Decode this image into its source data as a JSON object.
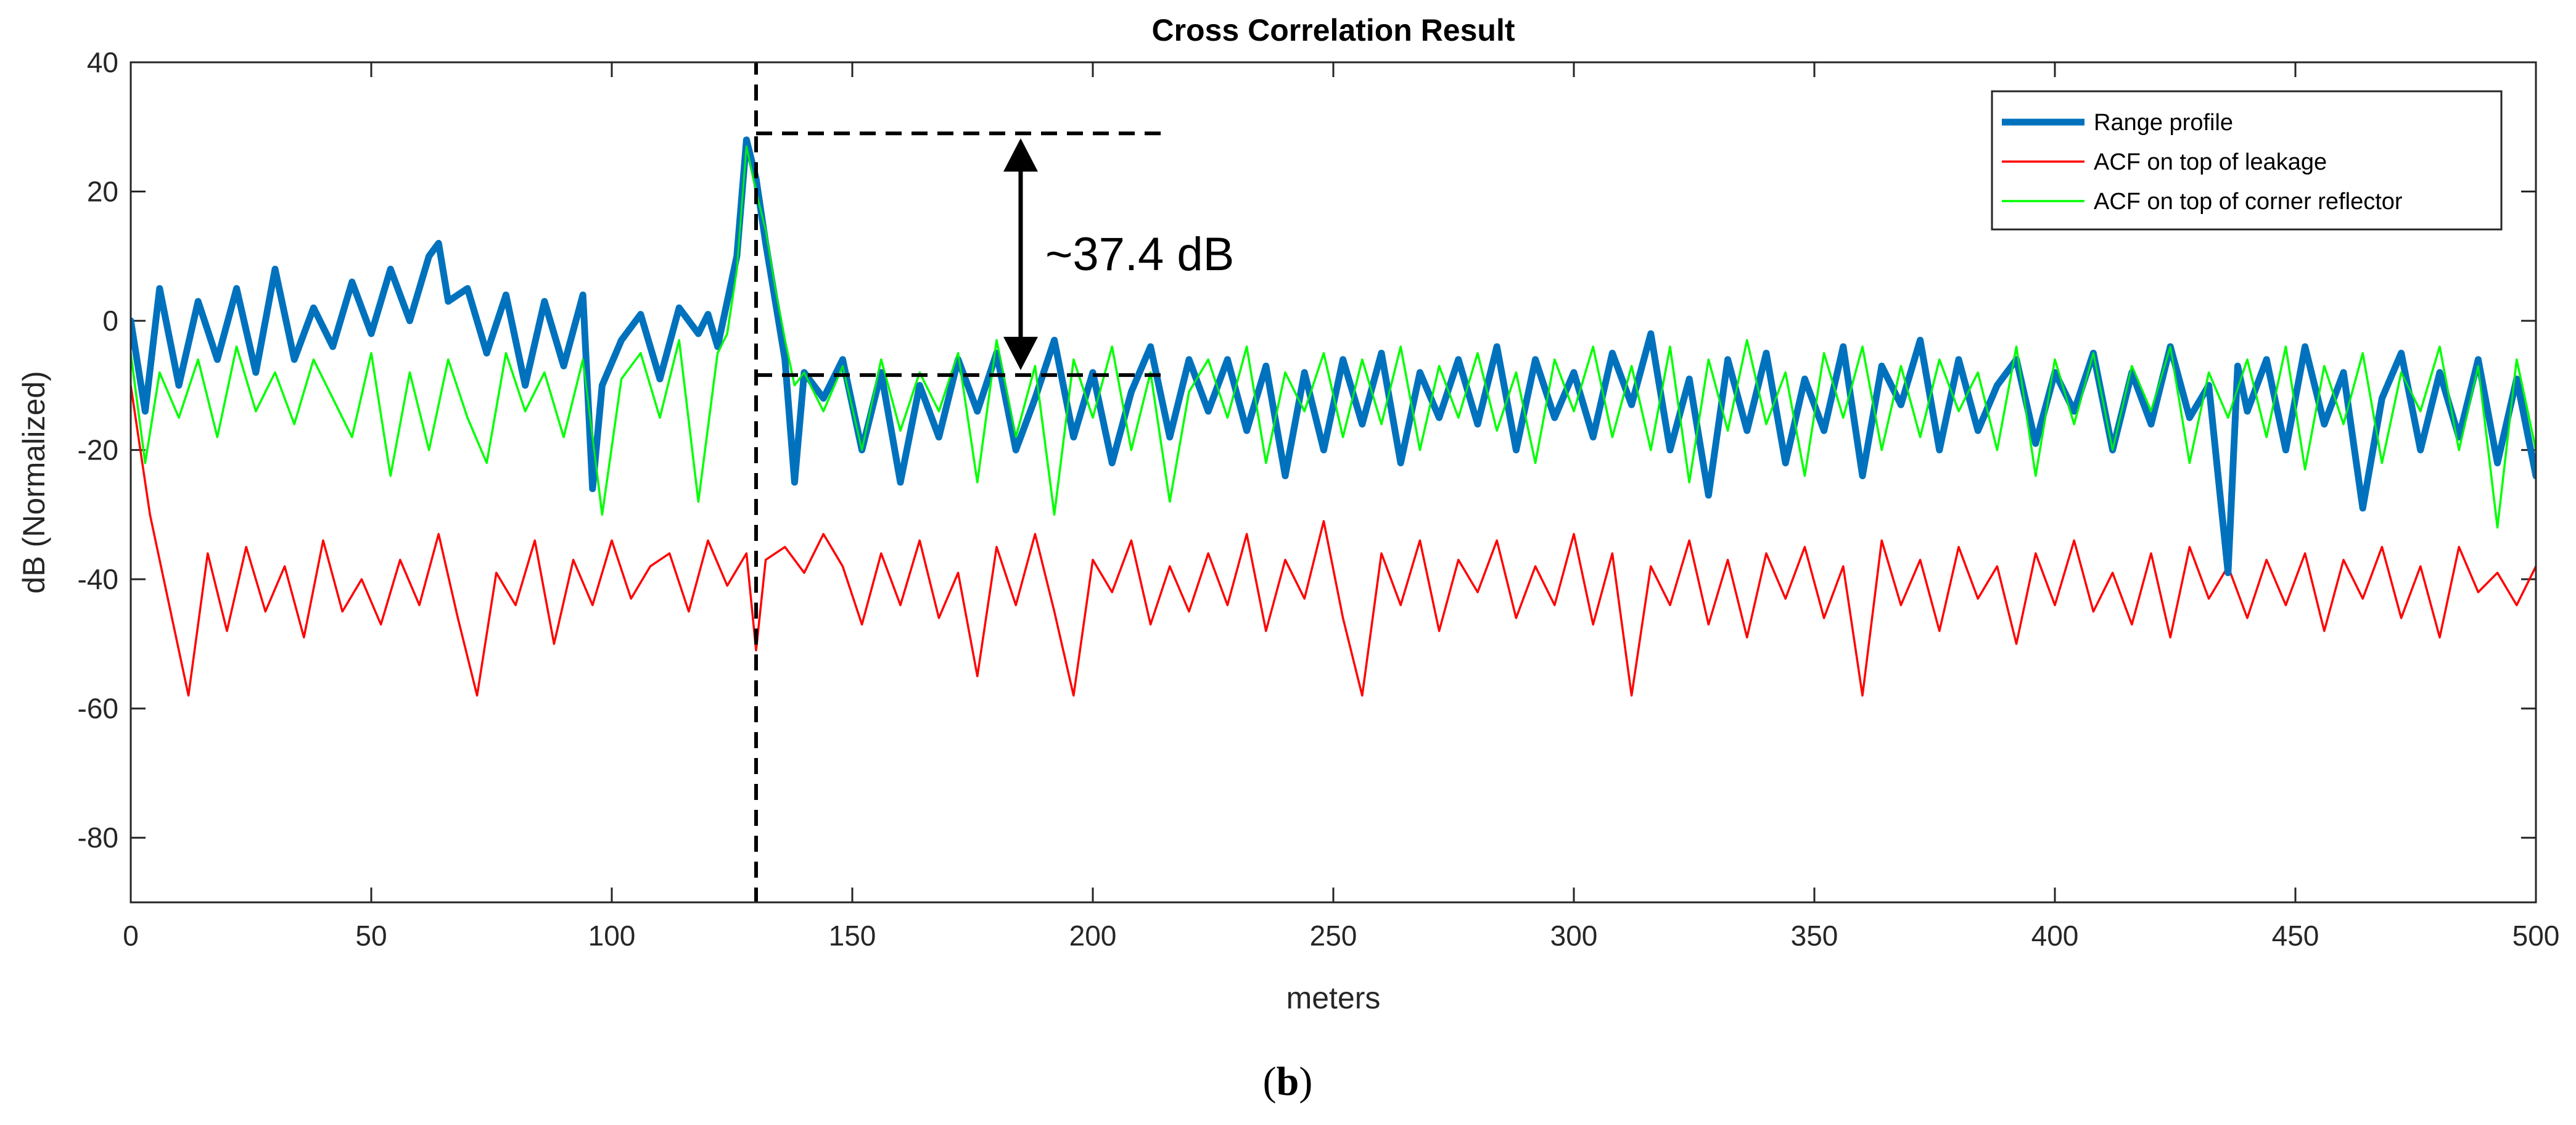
{
  "chart_data": {
    "type": "line",
    "title": "Cross Correlation Result",
    "xlabel": "meters",
    "ylabel": "dB (Normalized)",
    "xlim": [
      0,
      500
    ],
    "ylim": [
      -90,
      40
    ],
    "xticks": [
      "0",
      "50",
      "100",
      "150",
      "200",
      "250",
      "300",
      "350",
      "400",
      "450",
      "500"
    ],
    "yticks": [
      "40",
      "20",
      "0",
      "-20",
      "-40",
      "-60",
      "-80"
    ],
    "legend_position": "top-right",
    "series": [
      {
        "name": "Range profile",
        "color": "#0072BD",
        "x": [
          0,
          3,
          6,
          10,
          14,
          18,
          22,
          26,
          30,
          34,
          38,
          42,
          46,
          50,
          54,
          58,
          62,
          64,
          66,
          70,
          74,
          78,
          82,
          86,
          90,
          94,
          96,
          98,
          102,
          106,
          110,
          114,
          118,
          120,
          122,
          124,
          126,
          128,
          130,
          132,
          134,
          136,
          138,
          140,
          144,
          148,
          152,
          156,
          160,
          164,
          168,
          172,
          176,
          180,
          184,
          188,
          192,
          196,
          200,
          204,
          208,
          212,
          216,
          220,
          224,
          228,
          232,
          236,
          240,
          244,
          248,
          252,
          256,
          260,
          264,
          268,
          272,
          276,
          280,
          284,
          288,
          292,
          296,
          300,
          304,
          308,
          312,
          316,
          320,
          324,
          328,
          332,
          336,
          340,
          344,
          348,
          352,
          356,
          360,
          364,
          368,
          372,
          376,
          380,
          384,
          388,
          392,
          396,
          400,
          404,
          408,
          412,
          416,
          420,
          424,
          428,
          432,
          436,
          438,
          440,
          444,
          448,
          452,
          456,
          460,
          464,
          468,
          472,
          476,
          480,
          484,
          488,
          492,
          496,
          500
        ],
        "y": [
          0,
          -14,
          5,
          -10,
          3,
          -6,
          5,
          -8,
          8,
          -6,
          2,
          -4,
          6,
          -2,
          8,
          0,
          10,
          12,
          3,
          5,
          -5,
          4,
          -10,
          3,
          -7,
          4,
          -26,
          -10,
          -3,
          1,
          -9,
          2,
          -2,
          1,
          -4,
          3,
          10,
          28,
          22,
          12,
          3,
          -6,
          -25,
          -8,
          -12,
          -6,
          -20,
          -8,
          -25,
          -10,
          -18,
          -6,
          -14,
          -5,
          -20,
          -12,
          -3,
          -18,
          -8,
          -22,
          -11,
          -4,
          -18,
          -6,
          -14,
          -6,
          -17,
          -7,
          -24,
          -8,
          -20,
          -6,
          -16,
          -5,
          -22,
          -8,
          -15,
          -6,
          -16,
          -4,
          -20,
          -6,
          -15,
          -8,
          -18,
          -5,
          -13,
          -2,
          -20,
          -9,
          -27,
          -6,
          -17,
          -5,
          -22,
          -9,
          -17,
          -4,
          -24,
          -7,
          -13,
          -3,
          -20,
          -6,
          -17,
          -10,
          -6,
          -19,
          -8,
          -14,
          -5,
          -20,
          -8,
          -16,
          -4,
          -15,
          -10,
          -39,
          -7,
          -14,
          -6,
          -20,
          -4,
          -16,
          -8,
          -29,
          -12,
          -5,
          -20,
          -8,
          -18,
          -6,
          -22,
          -9,
          -24
        ]
      },
      {
        "name": "ACF on top of leakage",
        "color": "#FF0000",
        "x": [
          0,
          4,
          8,
          12,
          16,
          20,
          24,
          28,
          32,
          36,
          40,
          44,
          48,
          52,
          56,
          60,
          64,
          68,
          72,
          76,
          80,
          84,
          88,
          92,
          96,
          100,
          104,
          108,
          112,
          116,
          120,
          124,
          128,
          130,
          132,
          136,
          140,
          144,
          148,
          152,
          156,
          160,
          164,
          168,
          172,
          176,
          180,
          184,
          188,
          192,
          196,
          200,
          204,
          208,
          212,
          216,
          220,
          224,
          228,
          232,
          236,
          240,
          244,
          248,
          252,
          256,
          260,
          264,
          268,
          272,
          276,
          280,
          284,
          288,
          292,
          296,
          300,
          304,
          308,
          312,
          316,
          320,
          324,
          328,
          332,
          336,
          340,
          344,
          348,
          352,
          356,
          360,
          364,
          368,
          372,
          376,
          380,
          384,
          388,
          392,
          396,
          400,
          404,
          408,
          412,
          416,
          420,
          424,
          428,
          432,
          436,
          440,
          444,
          448,
          452,
          456,
          460,
          464,
          468,
          472,
          476,
          480,
          484,
          488,
          492,
          496,
          500
        ],
        "y": [
          -10,
          -30,
          -44,
          -58,
          -36,
          -48,
          -35,
          -45,
          -38,
          -49,
          -34,
          -45,
          -40,
          -47,
          -37,
          -44,
          -33,
          -46,
          -58,
          -39,
          -44,
          -34,
          -50,
          -37,
          -44,
          -34,
          -43,
          -38,
          -36,
          -45,
          -34,
          -41,
          -36,
          -51,
          -37,
          -35,
          -39,
          -33,
          -38,
          -47,
          -36,
          -44,
          -34,
          -46,
          -39,
          -55,
          -35,
          -44,
          -33,
          -45,
          -58,
          -37,
          -42,
          -34,
          -47,
          -38,
          -45,
          -36,
          -44,
          -33,
          -48,
          -37,
          -43,
          -31,
          -46,
          -58,
          -36,
          -44,
          -34,
          -48,
          -37,
          -42,
          -34,
          -46,
          -38,
          -44,
          -33,
          -47,
          -36,
          -58,
          -38,
          -44,
          -34,
          -47,
          -37,
          -49,
          -36,
          -43,
          -35,
          -46,
          -38,
          -58,
          -34,
          -44,
          -37,
          -48,
          -35,
          -43,
          -38,
          -50,
          -36,
          -44,
          -34,
          -45,
          -39,
          -47,
          -36,
          -49,
          -35,
          -43,
          -38,
          -46,
          -37,
          -44,
          -36,
          -48,
          -37,
          -43,
          -35,
          -46,
          -38,
          -49,
          -35,
          -42,
          -39,
          -44,
          -38
        ]
      },
      {
        "name": "ACF on top of corner reflector",
        "color": "#00FF00",
        "x": [
          0,
          3,
          6,
          10,
          14,
          18,
          22,
          26,
          30,
          34,
          38,
          42,
          46,
          50,
          54,
          58,
          62,
          66,
          70,
          74,
          78,
          82,
          86,
          90,
          94,
          98,
          102,
          106,
          110,
          114,
          118,
          122,
          124,
          126,
          128,
          130,
          132,
          134,
          136,
          138,
          140,
          144,
          148,
          152,
          156,
          160,
          164,
          168,
          172,
          176,
          180,
          184,
          188,
          192,
          196,
          200,
          204,
          208,
          212,
          216,
          220,
          224,
          228,
          232,
          236,
          240,
          244,
          248,
          252,
          256,
          260,
          264,
          268,
          272,
          276,
          280,
          284,
          288,
          292,
          296,
          300,
          304,
          308,
          312,
          316,
          320,
          324,
          328,
          332,
          336,
          340,
          344,
          348,
          352,
          356,
          360,
          364,
          368,
          372,
          376,
          380,
          384,
          388,
          392,
          396,
          400,
          404,
          408,
          412,
          416,
          420,
          424,
          428,
          432,
          436,
          440,
          444,
          448,
          452,
          456,
          460,
          464,
          468,
          472,
          476,
          480,
          484,
          488,
          492,
          496,
          500
        ],
        "y": [
          -5,
          -22,
          -8,
          -15,
          -6,
          -18,
          -4,
          -14,
          -8,
          -16,
          -6,
          -12,
          -18,
          -5,
          -24,
          -8,
          -20,
          -6,
          -15,
          -22,
          -5,
          -14,
          -8,
          -18,
          -6,
          -30,
          -9,
          -5,
          -15,
          -3,
          -28,
          -5,
          -2,
          8,
          27,
          20,
          14,
          5,
          -3,
          -10,
          -8,
          -14,
          -7,
          -20,
          -6,
          -17,
          -8,
          -14,
          -5,
          -25,
          -3,
          -18,
          -7,
          -30,
          -6,
          -15,
          -4,
          -20,
          -8,
          -28,
          -11,
          -6,
          -15,
          -4,
          -22,
          -8,
          -14,
          -5,
          -18,
          -6,
          -16,
          -4,
          -20,
          -7,
          -15,
          -5,
          -17,
          -8,
          -22,
          -6,
          -14,
          -4,
          -18,
          -7,
          -20,
          -4,
          -25,
          -6,
          -17,
          -3,
          -16,
          -8,
          -24,
          -5,
          -15,
          -4,
          -20,
          -7,
          -18,
          -6,
          -14,
          -8,
          -20,
          -4,
          -24,
          -6,
          -16,
          -5,
          -20,
          -7,
          -14,
          -4,
          -22,
          -8,
          -15,
          -6,
          -18,
          -4,
          -23,
          -7,
          -16,
          -5,
          -22,
          -8,
          -14,
          -4,
          -20,
          -7,
          -32,
          -6,
          -20
        ]
      }
    ],
    "annotations": {
      "difference_label": "~37.4 dB",
      "peak_marker_x": 130,
      "peak_level_db": 29,
      "floor_level_db": -8.4
    }
  },
  "caption": {
    "open": "(",
    "letter": "b",
    "close": ")"
  }
}
